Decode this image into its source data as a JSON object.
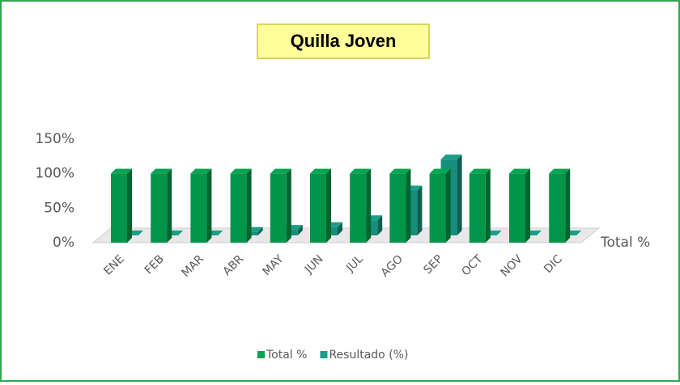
{
  "chart_data": {
    "type": "bar3d",
    "title": "Quilla Joven",
    "categories": [
      "ENE",
      "FEB",
      "MAR",
      "ABR",
      "MAY",
      "JUN",
      "JUL",
      "AGO",
      "SEP",
      "OCT",
      "NOV",
      "DIC"
    ],
    "series": [
      {
        "name": "Total %",
        "color": "#00a651",
        "values": [
          100,
          100,
          100,
          100,
          100,
          100,
          100,
          100,
          100,
          100,
          100,
          100
        ]
      },
      {
        "name": "Resultado (%)",
        "color": "#1a9e8a",
        "values": [
          0,
          0,
          0,
          5,
          8,
          12,
          22,
          65,
          110,
          0,
          0,
          0
        ]
      }
    ],
    "depth_label": "Total %",
    "ylim": [
      0,
      150
    ],
    "yticks": [
      {
        "value": 0,
        "label": "0%"
      },
      {
        "value": 50,
        "label": "50%"
      },
      {
        "value": 100,
        "label": "100%"
      },
      {
        "value": 150,
        "label": "150%"
      }
    ]
  }
}
